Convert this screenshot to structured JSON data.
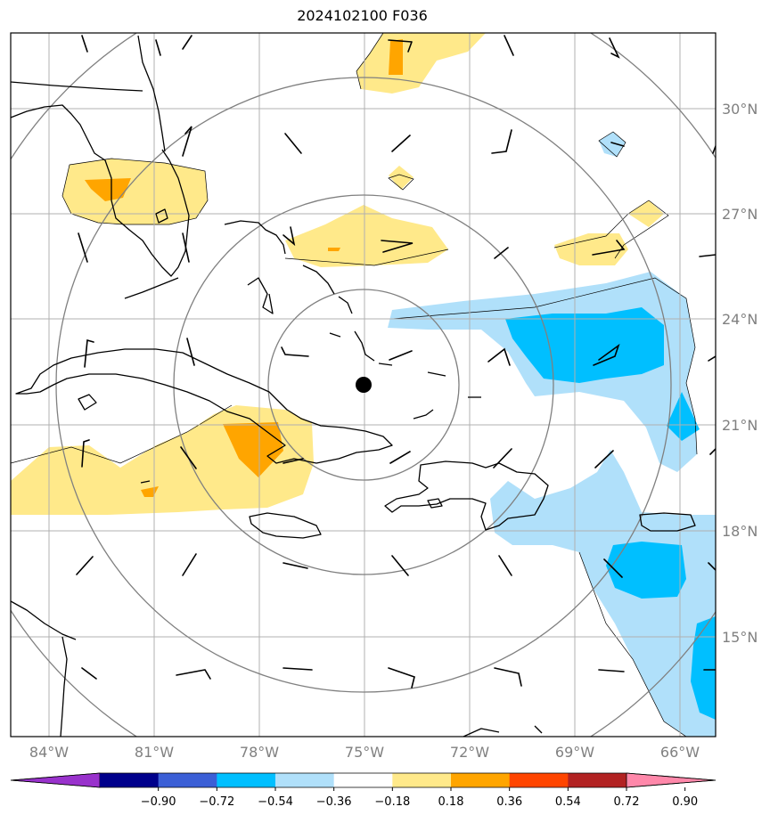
{
  "title": "2024102100 F036",
  "lon_labels": [
    "84°W",
    "81°W",
    "78°W",
    "75°W",
    "72°W",
    "69°W",
    "66°W"
  ],
  "lat_labels": [
    "30°N",
    "27°N",
    "24°N",
    "21°N",
    "18°N",
    "15°N"
  ],
  "colorbar": {
    "labels": [
      "−0.90",
      "−0.72",
      "−0.54",
      "−0.36",
      "−0.18",
      "0.18",
      "0.36",
      "0.54",
      "0.72",
      "0.90"
    ],
    "colors": [
      "#9932cc",
      "#00008b",
      "#3b5fd6",
      "#00bfff",
      "#b0e0fa",
      "#ffffff",
      "#ffe98a",
      "#ffa500",
      "#ff4500",
      "#b22222",
      "#ff88aa"
    ]
  },
  "storm_center": {
    "lon": -75,
    "lat": 21.7
  },
  "fill_colors": {
    "yellow": "#ffe98a",
    "orange": "#ffa500",
    "light_blue": "#b0e0fa",
    "blue": "#00bfff"
  }
}
